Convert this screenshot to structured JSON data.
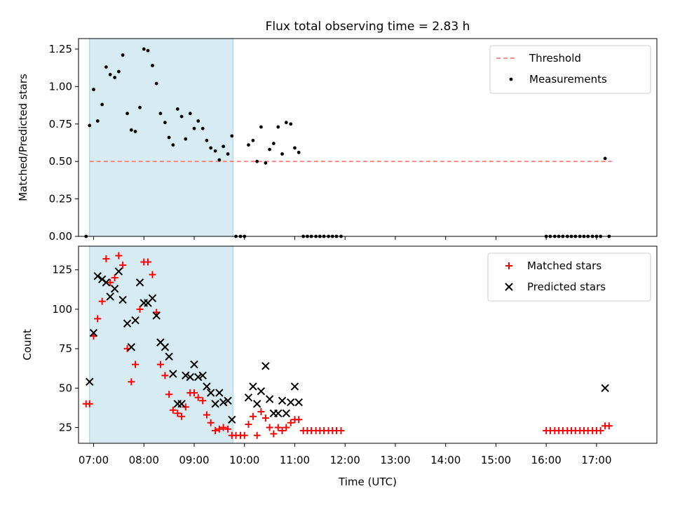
{
  "chart_data": [
    {
      "type": "scatter",
      "title": "Flux total observing time = 2.83 h",
      "ylabel": "Matched/Predicted stars",
      "xlim": [
        6.7,
        18.2
      ],
      "ylim": [
        0,
        1.32
      ],
      "yticks": [
        0,
        0.25,
        0.5,
        0.75,
        1.0,
        1.25
      ],
      "ytick_labels": [
        "0.00",
        "0.25",
        "0.50",
        "0.75",
        "1.00",
        "1.25"
      ],
      "shaded_span": [
        6.92,
        9.77
      ],
      "legend": [
        "Threshold",
        "Measurements"
      ],
      "threshold": {
        "name": "Threshold",
        "x": [
          6.92,
          17.3
        ],
        "y": 0.5
      },
      "series": [
        {
          "name": "Measurements",
          "points": [
            [
              6.85,
              0
            ],
            [
              6.92,
              0.74
            ],
            [
              7.0,
              0.98
            ],
            [
              7.08,
              0.77
            ],
            [
              7.17,
              0.88
            ],
            [
              7.25,
              1.13
            ],
            [
              7.33,
              1.08
            ],
            [
              7.42,
              1.06
            ],
            [
              7.5,
              1.1
            ],
            [
              7.58,
              1.21
            ],
            [
              7.67,
              0.82
            ],
            [
              7.75,
              0.71
            ],
            [
              7.83,
              0.7
            ],
            [
              7.92,
              0.86
            ],
            [
              8.0,
              1.25
            ],
            [
              8.08,
              1.24
            ],
            [
              8.17,
              1.14
            ],
            [
              8.25,
              1.02
            ],
            [
              8.33,
              0.82
            ],
            [
              8.42,
              0.76
            ],
            [
              8.5,
              0.66
            ],
            [
              8.58,
              0.61
            ],
            [
              8.67,
              0.85
            ],
            [
              8.75,
              0.8
            ],
            [
              8.83,
              0.65
            ],
            [
              8.92,
              0.82
            ],
            [
              9.0,
              0.72
            ],
            [
              9.08,
              0.77
            ],
            [
              9.17,
              0.72
            ],
            [
              9.25,
              0.64
            ],
            [
              9.33,
              0.59
            ],
            [
              9.42,
              0.57
            ],
            [
              9.5,
              0.51
            ],
            [
              9.58,
              0.6
            ],
            [
              9.67,
              0.55
            ],
            [
              9.75,
              0.67
            ],
            [
              9.83,
              0
            ],
            [
              9.92,
              0
            ],
            [
              10.0,
              0
            ],
            [
              10.08,
              0.61
            ],
            [
              10.17,
              0.64
            ],
            [
              10.25,
              0.5
            ],
            [
              10.33,
              0.73
            ],
            [
              10.42,
              0.49
            ],
            [
              10.5,
              0.58
            ],
            [
              10.58,
              0.62
            ],
            [
              10.67,
              0.73
            ],
            [
              10.75,
              0.55
            ],
            [
              10.83,
              0.76
            ],
            [
              10.92,
              0.75
            ],
            [
              11.0,
              0.59
            ],
            [
              11.08,
              0.56
            ],
            [
              11.17,
              0
            ],
            [
              11.25,
              0
            ],
            [
              11.33,
              0
            ],
            [
              11.42,
              0
            ],
            [
              11.5,
              0
            ],
            [
              11.58,
              0
            ],
            [
              11.67,
              0
            ],
            [
              11.75,
              0
            ],
            [
              11.83,
              0
            ],
            [
              11.92,
              0
            ],
            [
              16.0,
              0
            ],
            [
              16.08,
              0
            ],
            [
              16.17,
              0
            ],
            [
              16.25,
              0
            ],
            [
              16.33,
              0
            ],
            [
              16.42,
              0
            ],
            [
              16.5,
              0
            ],
            [
              16.58,
              0
            ],
            [
              16.67,
              0
            ],
            [
              16.75,
              0
            ],
            [
              16.83,
              0
            ],
            [
              16.92,
              0
            ],
            [
              17.0,
              0
            ],
            [
              17.08,
              0
            ],
            [
              17.17,
              0.52
            ],
            [
              17.25,
              0
            ]
          ]
        }
      ]
    },
    {
      "type": "scatter",
      "xlabel": "Time (UTC)",
      "ylabel": "Count",
      "xlim": [
        6.7,
        18.2
      ],
      "ylim": [
        15,
        140
      ],
      "yticks": [
        25,
        50,
        75,
        100,
        125
      ],
      "ytick_labels": [
        "25",
        "50",
        "75",
        "100",
        "125"
      ],
      "xticks": [
        7,
        8,
        9,
        10,
        11,
        12,
        13,
        14,
        15,
        16,
        17
      ],
      "xtick_labels": [
        "07:00",
        "08:00",
        "09:00",
        "10:00",
        "11:00",
        "12:00",
        "13:00",
        "14:00",
        "15:00",
        "16:00",
        "17:00"
      ],
      "shaded_span": [
        6.92,
        9.77
      ],
      "legend": [
        "Matched stars",
        "Predicted stars"
      ],
      "series": [
        {
          "name": "Matched stars",
          "points": [
            [
              6.85,
              40
            ],
            [
              6.92,
              40
            ],
            [
              7.0,
              83
            ],
            [
              7.08,
              94
            ],
            [
              7.17,
              105
            ],
            [
              7.25,
              132
            ],
            [
              7.33,
              117
            ],
            [
              7.42,
              120
            ],
            [
              7.5,
              134
            ],
            [
              7.58,
              128
            ],
            [
              7.67,
              75
            ],
            [
              7.75,
              54
            ],
            [
              7.83,
              65
            ],
            [
              7.92,
              100
            ],
            [
              8.0,
              130
            ],
            [
              8.08,
              130
            ],
            [
              8.17,
              122
            ],
            [
              8.25,
              98
            ],
            [
              8.33,
              65
            ],
            [
              8.42,
              58
            ],
            [
              8.5,
              46
            ],
            [
              8.58,
              36
            ],
            [
              8.67,
              34
            ],
            [
              8.75,
              32
            ],
            [
              8.83,
              38
            ],
            [
              8.92,
              47
            ],
            [
              9.0,
              47
            ],
            [
              9.08,
              44
            ],
            [
              9.17,
              42
            ],
            [
              9.25,
              33
            ],
            [
              9.33,
              28
            ],
            [
              9.42,
              23
            ],
            [
              9.5,
              24
            ],
            [
              9.58,
              25
            ],
            [
              9.67,
              24
            ],
            [
              9.75,
              20
            ],
            [
              9.83,
              20
            ],
            [
              9.92,
              20
            ],
            [
              10.0,
              20
            ],
            [
              10.08,
              27
            ],
            [
              10.17,
              32
            ],
            [
              10.25,
              20
            ],
            [
              10.33,
              35
            ],
            [
              10.42,
              31
            ],
            [
              10.5,
              25
            ],
            [
              10.58,
              21
            ],
            [
              10.67,
              25
            ],
            [
              10.75,
              23
            ],
            [
              10.83,
              25
            ],
            [
              10.92,
              28
            ],
            [
              11.0,
              30
            ],
            [
              11.08,
              30
            ],
            [
              11.17,
              23
            ],
            [
              11.25,
              23
            ],
            [
              11.33,
              23
            ],
            [
              11.42,
              23
            ],
            [
              11.5,
              23
            ],
            [
              11.58,
              23
            ],
            [
              11.67,
              23
            ],
            [
              11.75,
              23
            ],
            [
              11.83,
              23
            ],
            [
              11.92,
              23
            ],
            [
              16.0,
              23
            ],
            [
              16.08,
              23
            ],
            [
              16.17,
              23
            ],
            [
              16.25,
              23
            ],
            [
              16.33,
              23
            ],
            [
              16.42,
              23
            ],
            [
              16.5,
              23
            ],
            [
              16.58,
              23
            ],
            [
              16.67,
              23
            ],
            [
              16.75,
              23
            ],
            [
              16.83,
              23
            ],
            [
              16.92,
              23
            ],
            [
              17.0,
              23
            ],
            [
              17.08,
              23
            ],
            [
              17.17,
              26
            ],
            [
              17.25,
              26
            ]
          ]
        },
        {
          "name": "Predicted stars",
          "points": [
            [
              6.92,
              54
            ],
            [
              7.0,
              85
            ],
            [
              7.08,
              121
            ],
            [
              7.17,
              119
            ],
            [
              7.25,
              117
            ],
            [
              7.33,
              108
            ],
            [
              7.42,
              113
            ],
            [
              7.5,
              124
            ],
            [
              7.58,
              106
            ],
            [
              7.67,
              91
            ],
            [
              7.75,
              76
            ],
            [
              7.83,
              93
            ],
            [
              7.92,
              117
            ],
            [
              8.0,
              104
            ],
            [
              8.08,
              104
            ],
            [
              8.17,
              107
            ],
            [
              8.25,
              96
            ],
            [
              8.33,
              79
            ],
            [
              8.42,
              76
            ],
            [
              8.5,
              70
            ],
            [
              8.58,
              59
            ],
            [
              8.67,
              40
            ],
            [
              8.75,
              40
            ],
            [
              8.83,
              58
            ],
            [
              8.92,
              57
            ],
            [
              9.0,
              65
            ],
            [
              9.08,
              57
            ],
            [
              9.17,
              58
            ],
            [
              9.25,
              51
            ],
            [
              9.33,
              47
            ],
            [
              9.42,
              40
            ],
            [
              9.5,
              47
            ],
            [
              9.58,
              41
            ],
            [
              9.67,
              42
            ],
            [
              9.75,
              30
            ],
            [
              10.08,
              44
            ],
            [
              10.17,
              51
            ],
            [
              10.25,
              40
            ],
            [
              10.33,
              48
            ],
            [
              10.42,
              64
            ],
            [
              10.5,
              43
            ],
            [
              10.58,
              34
            ],
            [
              10.67,
              34
            ],
            [
              10.75,
              42
            ],
            [
              10.83,
              34
            ],
            [
              10.92,
              41
            ],
            [
              11.0,
              51
            ],
            [
              11.08,
              41
            ],
            [
              17.17,
              50
            ]
          ]
        }
      ]
    }
  ]
}
